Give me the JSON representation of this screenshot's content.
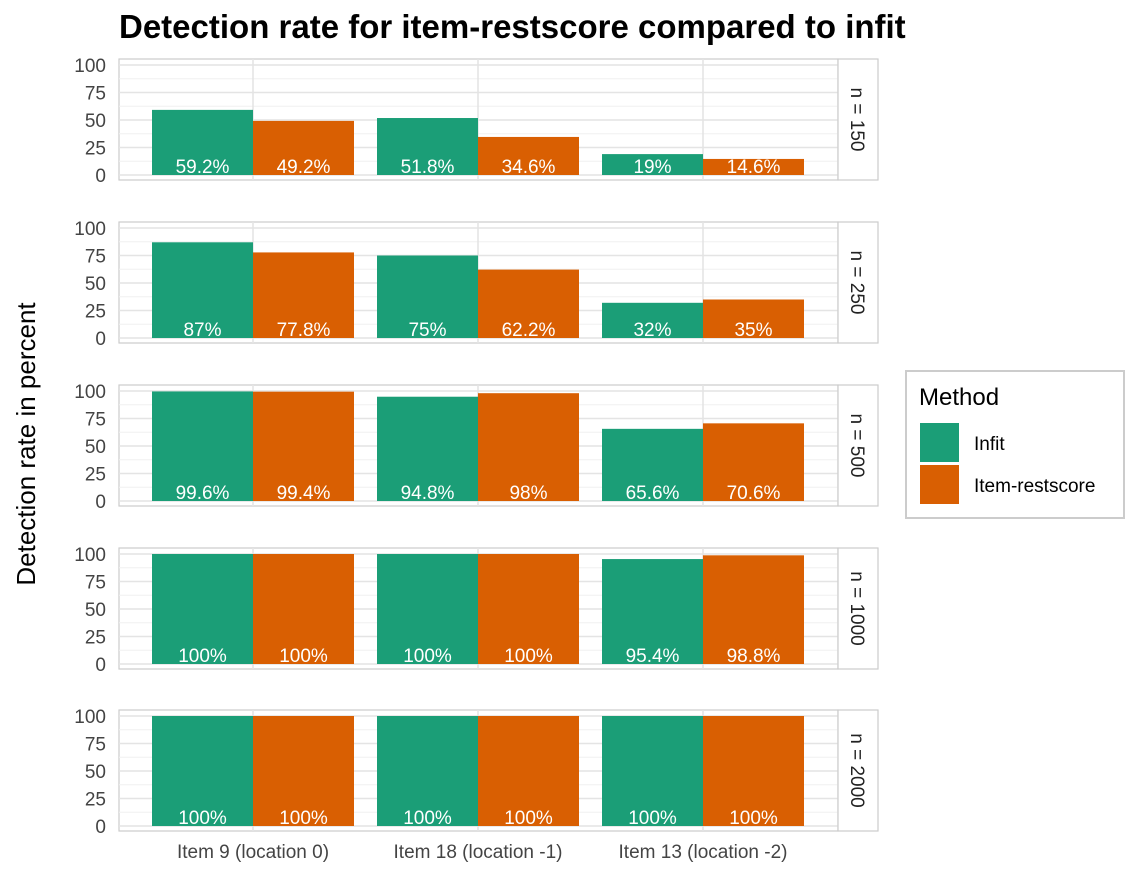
{
  "chart_data": {
    "type": "bar",
    "title": "Detection rate for item-restscore compared to infit",
    "ylabel": "Detection rate in percent",
    "xlabel": "",
    "ylim": [
      0,
      100
    ],
    "yticks": [
      "0",
      "25",
      "50",
      "75",
      "100"
    ],
    "categories": [
      "Item 9 (location 0)",
      "Item 18 (location -1)",
      "Item 13 (location -2)"
    ],
    "legend": {
      "title": "Method",
      "placement": "right",
      "entries": [
        {
          "name": "Infit",
          "color": "#1b9e77"
        },
        {
          "name": "Item-restscore",
          "color": "#d95f02"
        }
      ]
    },
    "grid": true,
    "facets": [
      {
        "label": "n = 150",
        "series": [
          {
            "name": "Infit",
            "values": [
              59.2,
              51.8,
              19
            ],
            "labels": [
              "59.2%",
              "51.8%",
              "19%"
            ]
          },
          {
            "name": "Item-restscore",
            "values": [
              49.2,
              34.6,
              14.6
            ],
            "labels": [
              "49.2%",
              "34.6%",
              "14.6%"
            ]
          }
        ]
      },
      {
        "label": "n = 250",
        "series": [
          {
            "name": "Infit",
            "values": [
              87,
              75,
              32
            ],
            "labels": [
              "87%",
              "75%",
              "32%"
            ]
          },
          {
            "name": "Item-restscore",
            "values": [
              77.8,
              62.2,
              35
            ],
            "labels": [
              "77.8%",
              "62.2%",
              "35%"
            ]
          }
        ]
      },
      {
        "label": "n = 500",
        "series": [
          {
            "name": "Infit",
            "values": [
              99.6,
              94.8,
              65.6
            ],
            "labels": [
              "99.6%",
              "94.8%",
              "65.6%"
            ]
          },
          {
            "name": "Item-restscore",
            "values": [
              99.4,
              98,
              70.6
            ],
            "labels": [
              "99.4%",
              "98%",
              "70.6%"
            ]
          }
        ]
      },
      {
        "label": "n = 1000",
        "series": [
          {
            "name": "Infit",
            "values": [
              100,
              100,
              95.4
            ],
            "labels": [
              "100%",
              "100%",
              "95.4%"
            ]
          },
          {
            "name": "Item-restscore",
            "values": [
              100,
              100,
              98.8
            ],
            "labels": [
              "100%",
              "100%",
              "98.8%"
            ]
          }
        ]
      },
      {
        "label": "n = 2000",
        "series": [
          {
            "name": "Infit",
            "values": [
              100,
              100,
              100
            ],
            "labels": [
              "100%",
              "100%",
              "100%"
            ]
          },
          {
            "name": "Item-restscore",
            "values": [
              100,
              100,
              100
            ],
            "labels": [
              "100%",
              "100%",
              "100%"
            ]
          }
        ]
      }
    ]
  }
}
